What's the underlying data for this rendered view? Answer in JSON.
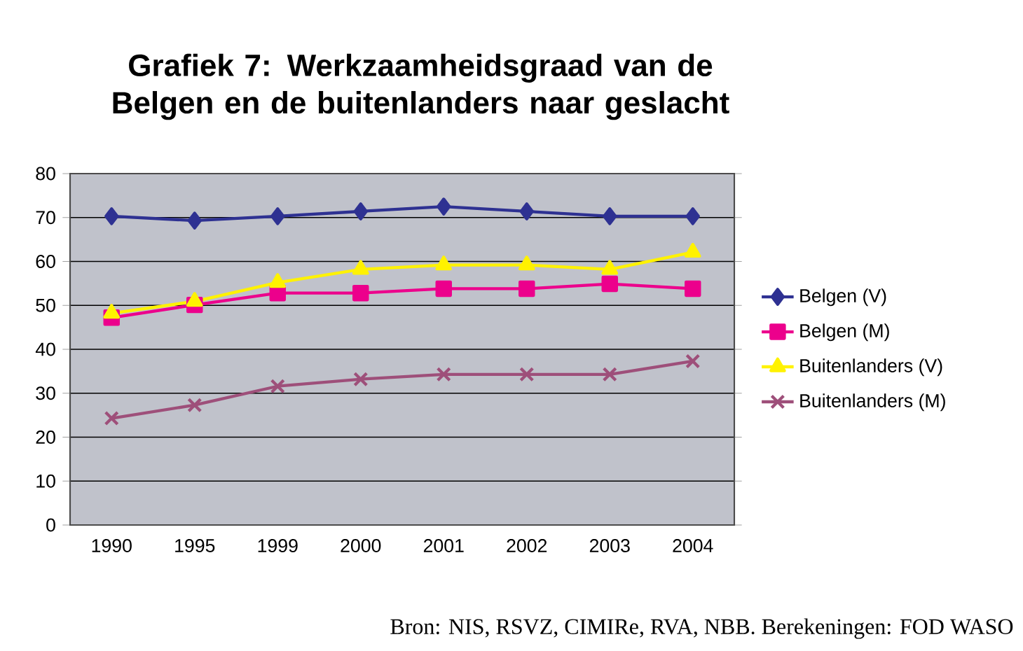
{
  "chart_data": {
    "type": "line",
    "title": "Grafiek 7: Werkzaamheidsgraad van de Belgen en de buitenlanders naar geslacht",
    "categories": [
      "1990",
      "1995",
      "1999",
      "2000",
      "2001",
      "2002",
      "2003",
      "2004"
    ],
    "series": [
      {
        "name": "Belgen (V)",
        "color": "#2e3192",
        "marker": "diamond",
        "values": [
          70.3,
          69.3,
          70.3,
          71.4,
          72.5,
          71.4,
          70.3,
          70.3
        ]
      },
      {
        "name": "Belgen (M)",
        "color": "#ec008c",
        "marker": "square",
        "values": [
          47.2,
          50.1,
          52.8,
          52.8,
          53.8,
          53.8,
          54.9,
          53.8
        ]
      },
      {
        "name": "Buitenlanders (V)",
        "color": "#fff200",
        "marker": "triangle",
        "values": [
          48.2,
          50.9,
          55.2,
          58.2,
          59.2,
          59.2,
          58.2,
          62.1
        ]
      },
      {
        "name": "Buitenlanders (M)",
        "color": "#9e4f7a",
        "marker": "cross",
        "values": [
          24.3,
          27.3,
          31.6,
          33.2,
          34.3,
          34.3,
          34.3,
          37.3
        ]
      }
    ],
    "ylim": [
      0,
      80
    ],
    "yticks": [
      0,
      10,
      20,
      30,
      40,
      50,
      60,
      70,
      80
    ],
    "grid": "y",
    "legend": "right",
    "annotations": [
      "Bron: NIS, RSVZ, CIMIRe, RVA, NBB. Berekeningen: FOD WASO"
    ]
  }
}
